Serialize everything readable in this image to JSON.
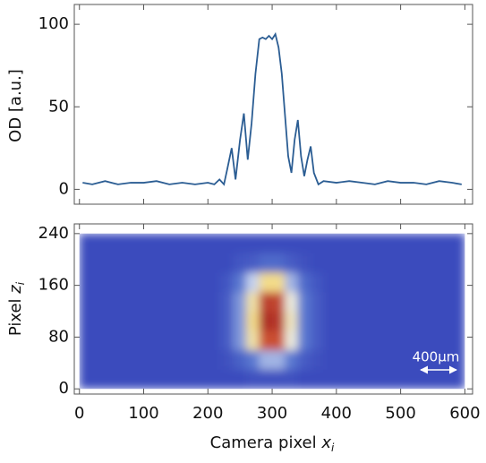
{
  "chart_data": [
    {
      "type": "line",
      "ylabel": "OD [a.u.]",
      "color": "#2b5d93",
      "xlim": [
        -8,
        612
      ],
      "xticks": [
        0,
        100,
        200,
        300,
        400,
        500,
        600
      ],
      "show_xtick_labels": false,
      "ylim": [
        -9,
        112
      ],
      "yticks": [
        0,
        50,
        100
      ],
      "x": [
        5,
        20,
        40,
        60,
        80,
        100,
        120,
        140,
        160,
        180,
        200,
        210,
        218,
        225,
        230,
        237,
        243,
        250,
        256,
        262,
        268,
        274,
        280,
        285,
        290,
        295,
        300,
        305,
        310,
        315,
        320,
        325,
        330,
        335,
        340,
        345,
        350,
        355,
        360,
        365,
        372,
        380,
        400,
        420,
        440,
        460,
        480,
        500,
        520,
        540,
        560,
        580,
        595
      ],
      "values": [
        4,
        3,
        5,
        3,
        4,
        4,
        5,
        3,
        4,
        3,
        4,
        3,
        6,
        3,
        12,
        25,
        6,
        30,
        46,
        18,
        40,
        70,
        91,
        92,
        91,
        93,
        91,
        94,
        86,
        70,
        45,
        20,
        10,
        30,
        42,
        20,
        8,
        18,
        26,
        10,
        3,
        5,
        4,
        5,
        4,
        3,
        5,
        4,
        4,
        3,
        5,
        4,
        3
      ]
    },
    {
      "type": "heatmap",
      "xlabel": {
        "text": "Camera pixel ",
        "var": "x",
        "sub": "i"
      },
      "ylabel": {
        "text": "Pixel ",
        "var": "z",
        "sub": "i"
      },
      "xlim": [
        -8,
        612
      ],
      "xticks": [
        0,
        100,
        200,
        300,
        400,
        500,
        600
      ],
      "ylim": [
        -8,
        255
      ],
      "yticks": [
        0,
        80,
        160,
        240
      ],
      "xbins": [
        0,
        20,
        40,
        60,
        80,
        100,
        120,
        140,
        160,
        180,
        200,
        220,
        240,
        260,
        280,
        300,
        320,
        340,
        360,
        380,
        400,
        420,
        440,
        460,
        480,
        500,
        520,
        540,
        560,
        580,
        600
      ],
      "ybins": [
        0,
        30,
        60,
        90,
        120,
        150,
        180,
        210,
        240
      ],
      "zlim": [
        0,
        100
      ],
      "colormap": [
        "#3340b8",
        "#5a78d0",
        "#e8f0f8",
        "#f3dc8a",
        "#d9603a",
        "#9e1f1f"
      ],
      "values": [
        [
          4,
          4,
          4,
          4,
          4,
          4,
          4,
          4,
          4,
          4,
          4,
          4,
          4,
          6,
          6,
          6,
          6,
          4,
          4,
          4,
          4,
          4,
          4,
          4,
          4,
          4,
          4,
          4,
          4,
          4
        ],
        [
          4,
          4,
          4,
          4,
          4,
          4,
          4,
          4,
          4,
          4,
          4,
          6,
          12,
          20,
          30,
          30,
          20,
          10,
          6,
          4,
          4,
          4,
          4,
          4,
          4,
          4,
          4,
          4,
          4,
          4
        ],
        [
          4,
          4,
          4,
          4,
          4,
          4,
          4,
          4,
          4,
          4,
          4,
          10,
          25,
          55,
          85,
          85,
          45,
          20,
          10,
          4,
          4,
          4,
          4,
          4,
          4,
          4,
          4,
          4,
          4,
          4
        ],
        [
          4,
          4,
          4,
          4,
          4,
          4,
          4,
          4,
          4,
          4,
          4,
          10,
          25,
          60,
          95,
          92,
          50,
          20,
          10,
          4,
          4,
          4,
          4,
          4,
          4,
          4,
          4,
          4,
          4,
          4
        ],
        [
          4,
          4,
          4,
          4,
          4,
          4,
          4,
          4,
          4,
          4,
          4,
          10,
          25,
          55,
          90,
          88,
          45,
          20,
          10,
          4,
          4,
          4,
          4,
          4,
          4,
          4,
          4,
          4,
          4,
          4
        ],
        [
          4,
          4,
          4,
          4,
          4,
          4,
          4,
          4,
          4,
          4,
          4,
          8,
          20,
          35,
          60,
          60,
          30,
          15,
          8,
          4,
          4,
          4,
          4,
          4,
          4,
          4,
          4,
          4,
          4,
          4
        ],
        [
          4,
          4,
          4,
          4,
          4,
          4,
          4,
          4,
          4,
          4,
          4,
          4,
          8,
          10,
          15,
          15,
          10,
          6,
          4,
          4,
          4,
          4,
          4,
          4,
          4,
          4,
          4,
          4,
          4,
          4
        ],
        [
          4,
          4,
          4,
          4,
          4,
          4,
          4,
          4,
          4,
          4,
          4,
          4,
          4,
          4,
          4,
          4,
          4,
          4,
          4,
          4,
          4,
          4,
          4,
          4,
          4,
          4,
          4,
          4,
          4,
          4
        ]
      ],
      "annotation": "400μm"
    }
  ]
}
